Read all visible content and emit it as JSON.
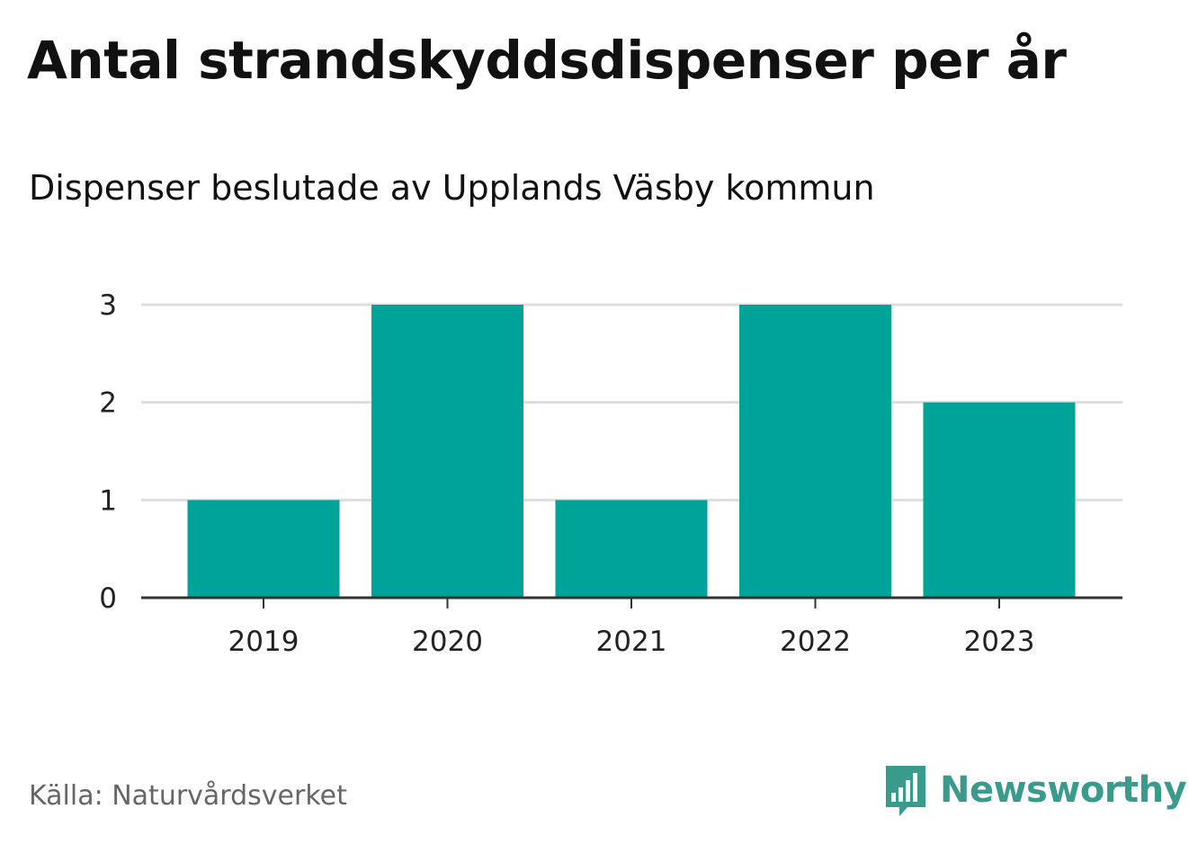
{
  "header": {
    "title": "Antal strandskyddsdispenser per år",
    "subtitle": "Dispenser beslutade av Upplands Väsby kommun"
  },
  "footer": {
    "source": "Källa: Naturvårdsverket",
    "brand": "Newsworthy",
    "brand_icon": "bar-chart-speech-bubble-icon"
  },
  "colors": {
    "bar": "#00a398",
    "grid": "#dddddd",
    "axis": "#333333",
    "brand": "#3a9a8b"
  },
  "chart_data": {
    "type": "bar",
    "title": "Antal strandskyddsdispenser per år",
    "subtitle": "Dispenser beslutade av Upplands Väsby kommun",
    "categories": [
      "2019",
      "2020",
      "2021",
      "2022",
      "2023"
    ],
    "values": [
      1,
      3,
      1,
      3,
      2
    ],
    "yticks": [
      0,
      1,
      2,
      3
    ],
    "ylim": [
      0,
      3
    ],
    "xlabel": "",
    "ylabel": "",
    "grid": true,
    "legend": "none"
  }
}
